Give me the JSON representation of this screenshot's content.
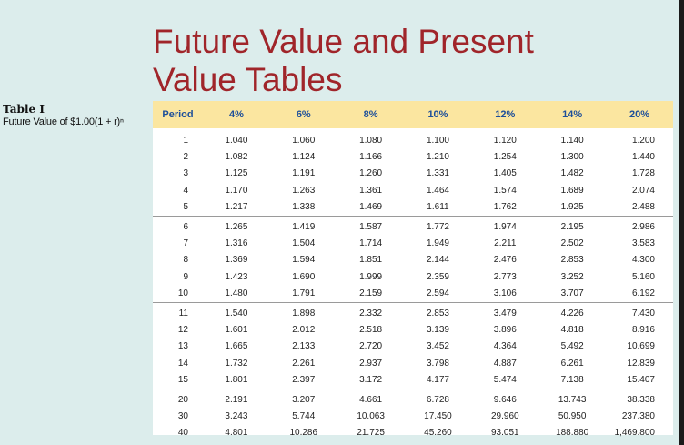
{
  "title": {
    "line1": "Future Value and Present",
    "line2": "Value Tables"
  },
  "table": {
    "label": "Table I",
    "caption": "Future Value of $1.00(1 + r)ⁿ",
    "columns": [
      "Period",
      "4%",
      "6%",
      "8%",
      "10%",
      "12%",
      "14%",
      "20%"
    ],
    "rows": [
      [
        "1",
        "1.040",
        "1.060",
        "1.080",
        "1.100",
        "1.120",
        "1.140",
        "1.200"
      ],
      [
        "2",
        "1.082",
        "1.124",
        "1.166",
        "1.210",
        "1.254",
        "1.300",
        "1.440"
      ],
      [
        "3",
        "1.125",
        "1.191",
        "1.260",
        "1.331",
        "1.405",
        "1.482",
        "1.728"
      ],
      [
        "4",
        "1.170",
        "1.263",
        "1.361",
        "1.464",
        "1.574",
        "1.689",
        "2.074"
      ],
      [
        "5",
        "1.217",
        "1.338",
        "1.469",
        "1.611",
        "1.762",
        "1.925",
        "2.488"
      ],
      [
        "6",
        "1.265",
        "1.419",
        "1.587",
        "1.772",
        "1.974",
        "2.195",
        "2.986"
      ],
      [
        "7",
        "1.316",
        "1.504",
        "1.714",
        "1.949",
        "2.211",
        "2.502",
        "3.583"
      ],
      [
        "8",
        "1.369",
        "1.594",
        "1.851",
        "2.144",
        "2.476",
        "2.853",
        "4.300"
      ],
      [
        "9",
        "1.423",
        "1.690",
        "1.999",
        "2.359",
        "2.773",
        "3.252",
        "5.160"
      ],
      [
        "10",
        "1.480",
        "1.791",
        "2.159",
        "2.594",
        "3.106",
        "3.707",
        "6.192"
      ],
      [
        "11",
        "1.540",
        "1.898",
        "2.332",
        "2.853",
        "3.479",
        "4.226",
        "7.430"
      ],
      [
        "12",
        "1.601",
        "2.012",
        "2.518",
        "3.139",
        "3.896",
        "4.818",
        "8.916"
      ],
      [
        "13",
        "1.665",
        "2.133",
        "2.720",
        "3.452",
        "4.364",
        "5.492",
        "10.699"
      ],
      [
        "14",
        "1.732",
        "2.261",
        "2.937",
        "3.798",
        "4.887",
        "6.261",
        "12.839"
      ],
      [
        "15",
        "1.801",
        "2.397",
        "3.172",
        "4.177",
        "5.474",
        "7.138",
        "15.407"
      ],
      [
        "20",
        "2.191",
        "3.207",
        "4.661",
        "6.728",
        "9.646",
        "13.743",
        "38.338"
      ],
      [
        "30",
        "3.243",
        "5.744",
        "10.063",
        "17.450",
        "29.960",
        "50.950",
        "237.380"
      ],
      [
        "40",
        "4.801",
        "10.286",
        "21.725",
        "45.260",
        "93.051",
        "188.880",
        "1,469.800"
      ]
    ],
    "group_starts": [
      0,
      5,
      10,
      15
    ]
  },
  "colors": {
    "background": "#dcedec",
    "title": "#a0252a",
    "header_bg": "#fbe6a0",
    "header_text": "#1d4f9a"
  }
}
